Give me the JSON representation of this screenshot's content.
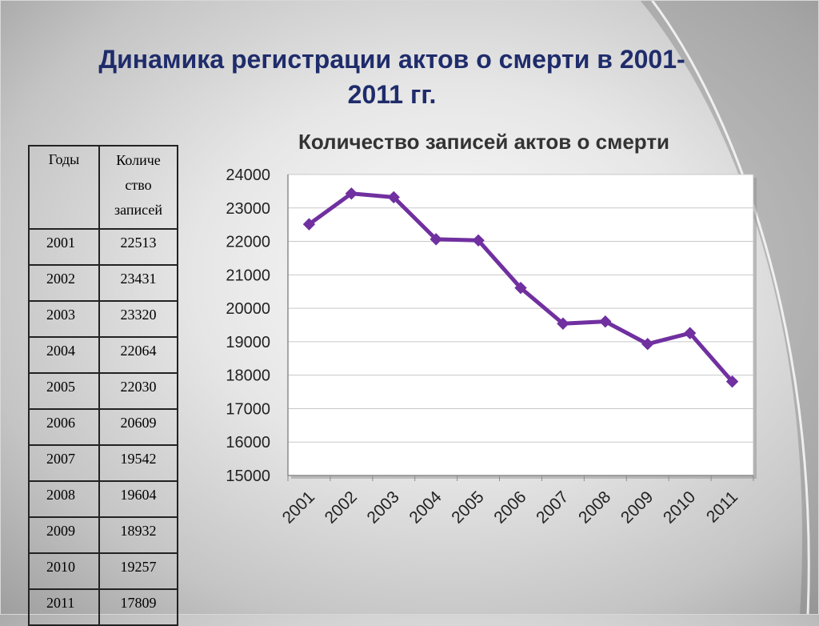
{
  "slide": {
    "title_line1": "Динамика регистрации актов о смерти в 2001-",
    "title_line2": "2011 гг."
  },
  "table": {
    "header_year": "Годы",
    "header_count_lines": [
      "Количе",
      "ство",
      "записей"
    ],
    "rows": [
      {
        "year": "2001",
        "count": "22513"
      },
      {
        "year": "2002",
        "count": "23431"
      },
      {
        "year": "2003",
        "count": "23320"
      },
      {
        "year": "2004",
        "count": "22064"
      },
      {
        "year": "2005",
        "count": "22030"
      },
      {
        "year": "2006",
        "count": "20609"
      },
      {
        "year": "2007",
        "count": "19542"
      },
      {
        "year": "2008",
        "count": "19604"
      },
      {
        "year": "2009",
        "count": "18932"
      },
      {
        "year": "2010",
        "count": "19257"
      },
      {
        "year": "2011",
        "count": "17809"
      }
    ]
  },
  "chart_data": {
    "type": "line",
    "title": "Количество записей актов о смерти",
    "categories": [
      "2001",
      "2002",
      "2003",
      "2004",
      "2005",
      "2006",
      "2007",
      "2008",
      "2009",
      "2010",
      "2011"
    ],
    "series": [
      {
        "values": [
          22513,
          23431,
          23320,
          22064,
          22030,
          20609,
          19542,
          19604,
          18932,
          19257,
          17809
        ]
      }
    ],
    "ylim": [
      15000,
      24000
    ],
    "yticks": [
      15000,
      16000,
      17000,
      18000,
      19000,
      20000,
      21000,
      22000,
      23000,
      24000
    ],
    "xlabel": "",
    "ylabel": "",
    "grid": true,
    "legend": "none",
    "colors": {
      "line": "#7030a0",
      "marker": "#7030a0",
      "title_text": "#1f2c6b"
    }
  }
}
